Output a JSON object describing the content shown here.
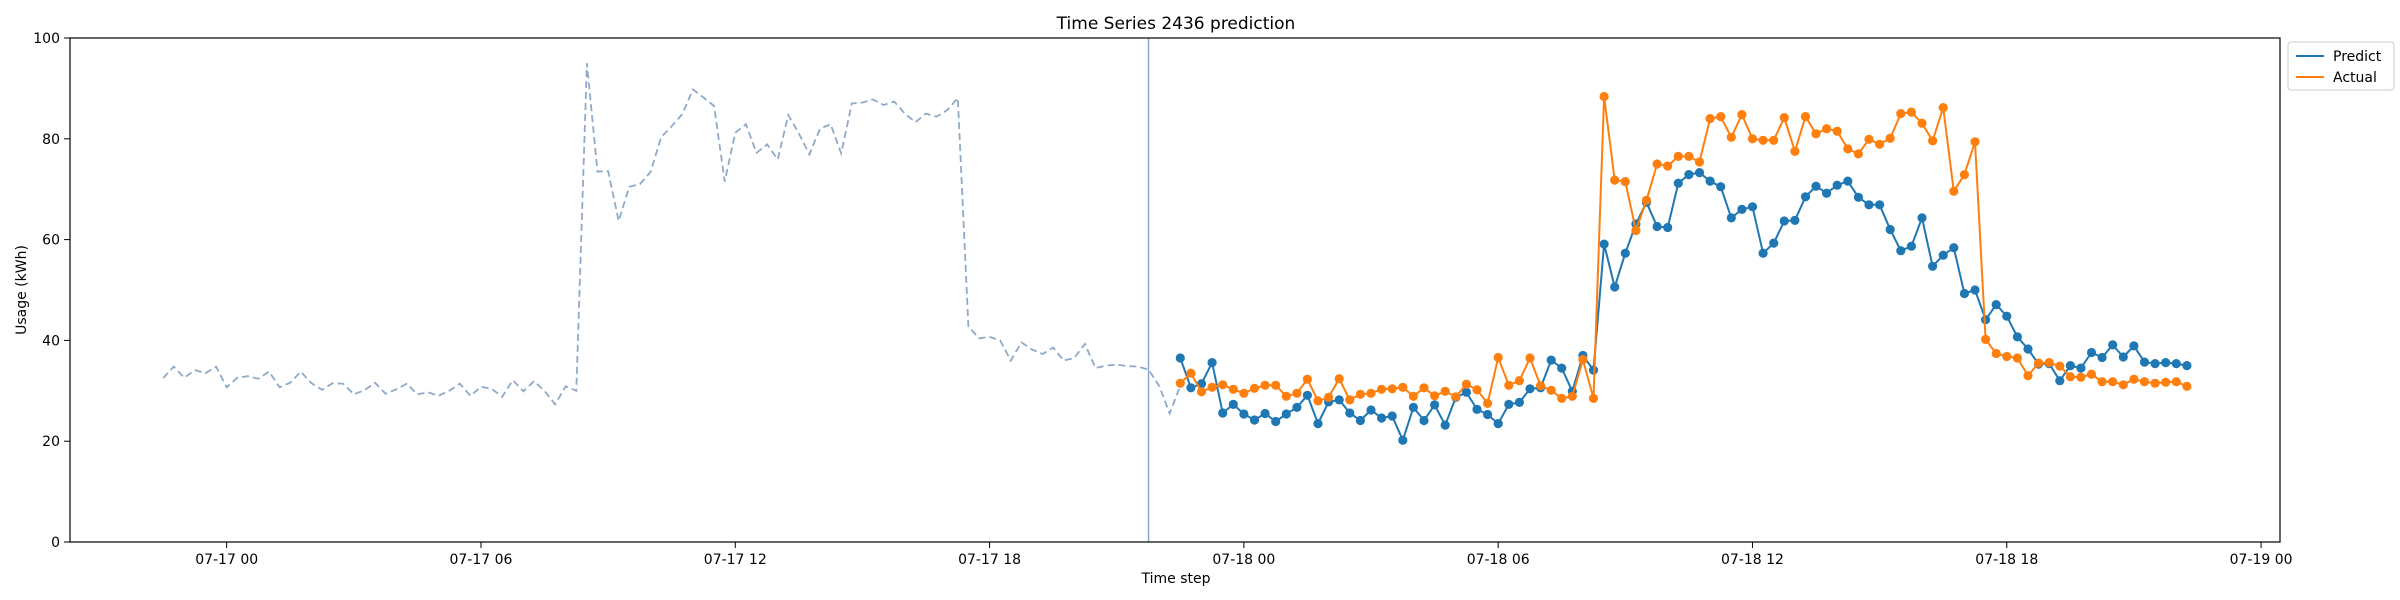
{
  "chart_data": {
    "type": "line",
    "title": "Time Series 2436 prediction",
    "xlabel": "Time step",
    "ylabel": "Usage (kWh)",
    "ylim": [
      0,
      100
    ],
    "yticks": [
      "0",
      "20",
      "40",
      "60",
      "80",
      "100"
    ],
    "xticks": [
      "07-17 00",
      "07-17 06",
      "07-17 12",
      "07-17 18",
      "07-18 00",
      "07-18 06",
      "07-18 12",
      "07-18 18",
      "07-19 00"
    ],
    "x_start": "07-16 22:30",
    "x_step": "15 min",
    "forecast_start": "07-17 21:45",
    "legend_position": "top-right",
    "colors": {
      "history": "#8faac8",
      "predict": "#1f77b4",
      "actual": "#ff7f0e",
      "divider": "#8a9ed0"
    },
    "history": [
      32.5,
      34.8,
      32.6,
      34.1,
      33.5,
      34.8,
      30.7,
      32.6,
      32.9,
      32.4,
      33.8,
      30.7,
      31.6,
      33.8,
      31.5,
      30.2,
      31.5,
      31.4,
      29.3,
      30.1,
      31.6,
      29.4,
      30.3,
      31.4,
      29.3,
      29.7,
      29.0,
      30.0,
      31.4,
      29.0,
      30.8,
      30.4,
      28.8,
      32.1,
      29.9,
      31.9,
      30.0,
      27.3,
      30.9,
      30.0,
      95.0,
      73.5,
      73.6,
      63.7,
      70.5,
      71.0,
      73.4,
      80.3,
      82.5,
      84.9,
      89.8,
      88.2,
      86.5,
      71.5,
      81.2,
      82.9,
      77.2,
      78.9,
      75.9,
      84.7,
      81.1,
      76.9,
      82.0,
      82.9,
      77.1,
      87.0,
      87.2,
      87.8,
      86.7,
      87.4,
      85.0,
      83.3,
      85.0,
      84.4,
      85.7,
      88.1,
      42.8,
      40.4,
      40.7,
      40.0,
      36.0,
      39.6,
      38.2,
      37.3,
      38.6,
      36.0,
      36.5,
      39.3,
      34.5,
      35.0,
      35.2,
      34.9,
      34.8,
      34.2,
      31.0,
      25.5,
      31.0
    ],
    "series": [
      {
        "name": "Predict",
        "values": [
          36.5,
          30.6,
          31.4,
          35.6,
          25.6,
          27.3,
          25.4,
          24.2,
          25.5,
          23.9,
          25.4,
          26.7,
          29.1,
          23.5,
          27.8,
          28.2,
          25.6,
          24.1,
          26.2,
          24.6,
          25.0,
          20.2,
          26.7,
          24.1,
          27.2,
          23.2,
          28.7,
          29.7,
          26.3,
          25.3,
          23.5,
          27.3,
          27.7,
          30.4,
          30.6,
          36.1,
          34.5,
          29.9,
          37.0,
          34.1,
          59.1,
          50.6,
          57.3,
          63.1,
          67.4,
          62.6,
          62.4,
          71.2,
          72.9,
          73.3,
          71.6,
          70.5,
          64.3,
          66.0,
          66.5,
          57.3,
          59.3,
          63.7,
          63.8,
          68.5,
          70.6,
          69.2,
          70.8,
          71.6,
          68.4,
          66.9,
          66.9,
          62.0,
          57.8,
          58.7,
          64.3,
          54.7,
          56.9,
          58.4,
          49.3,
          50.0,
          44.1,
          47.1,
          44.8,
          40.7,
          38.3,
          35.3,
          35.4,
          32.0,
          35.0,
          34.5,
          37.6,
          36.6,
          39.1,
          36.7,
          38.9,
          35.7,
          35.4,
          35.6,
          35.4,
          35.0
        ]
      },
      {
        "name": "Actual",
        "values": [
          31.5,
          33.5,
          29.8,
          30.7,
          31.2,
          30.3,
          29.5,
          30.5,
          31.1,
          31.1,
          28.9,
          29.5,
          32.3,
          28.0,
          28.7,
          32.4,
          28.2,
          29.3,
          29.5,
          30.3,
          30.4,
          30.7,
          28.9,
          30.6,
          29.0,
          29.9,
          28.8,
          31.3,
          30.2,
          27.5,
          36.6,
          31.1,
          32.0,
          36.5,
          31.0,
          30.1,
          28.5,
          28.9,
          36.2,
          28.5,
          88.4,
          71.8,
          71.5,
          61.8,
          67.8,
          75.0,
          74.6,
          76.5,
          76.5,
          75.4,
          84.0,
          84.4,
          80.3,
          84.8,
          80.0,
          79.7,
          79.7,
          84.2,
          77.5,
          84.4,
          81.0,
          82.0,
          81.5,
          78.0,
          77.0,
          79.9,
          78.9,
          80.1,
          85.0,
          85.3,
          83.1,
          79.6,
          86.2,
          69.6,
          72.9,
          79.4,
          40.2,
          37.4,
          36.8,
          36.5,
          33.0,
          35.5,
          35.6,
          34.9,
          32.8,
          32.7,
          33.3,
          31.8,
          31.8,
          31.2,
          32.3,
          31.8,
          31.5,
          31.7,
          31.8,
          30.9
        ]
      }
    ]
  }
}
